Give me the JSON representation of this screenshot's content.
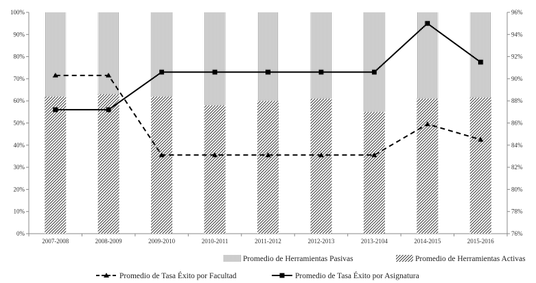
{
  "chart_data": {
    "type": "bar",
    "title": "",
    "xlabel": "",
    "ylabel": "",
    "categories": [
      "2007-2008",
      "2008-2009",
      "2009-2010",
      "2010-2011",
      "2011-2012",
      "2012-2013",
      "2013-2104",
      "2014-2015",
      "2015-2016"
    ],
    "ylim": [
      0,
      100
    ],
    "y2lim": [
      76,
      96
    ],
    "y_ticks": [
      "0%",
      "10%",
      "20%",
      "30%",
      "40%",
      "50%",
      "60%",
      "70%",
      "80%",
      "90%",
      "100%"
    ],
    "y2_ticks": [
      "76%",
      "78%",
      "80%",
      "82%",
      "84%",
      "86%",
      "88%",
      "90%",
      "92%",
      "94%",
      "96%"
    ],
    "grid": false,
    "legend_position": "bottom",
    "bar_series": [
      {
        "name": "Promedio de Herramientas Activas",
        "pattern": "dense-diagonal-hatch",
        "color": "#3a3a3a",
        "values": [
          62,
          63,
          62,
          58,
          60,
          61,
          55,
          61,
          61.5
        ]
      },
      {
        "name": "Promedio de Herramientas Pasivas",
        "pattern": "light-vertical-hatch",
        "color": "#9a9a9a",
        "values": [
          38,
          37,
          38,
          42,
          40,
          39,
          45,
          39,
          38.5
        ]
      }
    ],
    "line_series": [
      {
        "name": "Promedio de Tasa Éxito por Facultad",
        "axis": "right",
        "style": "dashed",
        "marker": "triangle",
        "color": "#000000",
        "values": [
          90.3,
          90.3,
          83.1,
          83.1,
          83.1,
          83.1,
          83.1,
          85.9,
          84.5
        ]
      },
      {
        "name": "Promedio de Tasa Éxito por Asignatura",
        "axis": "right",
        "style": "solid",
        "marker": "square",
        "color": "#000000",
        "values": [
          87.2,
          87.2,
          90.6,
          90.6,
          90.6,
          90.6,
          90.6,
          95,
          91.5
        ]
      }
    ]
  }
}
